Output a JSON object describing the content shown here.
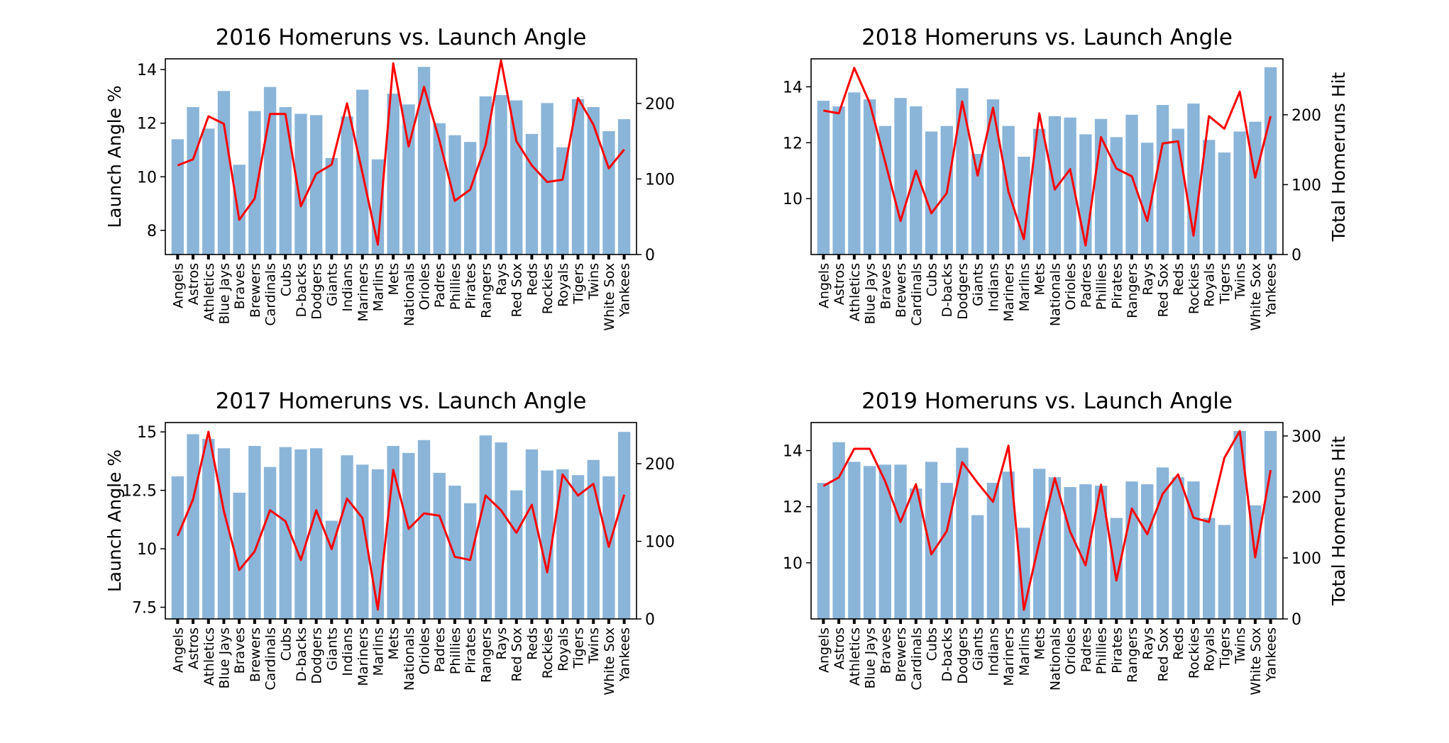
{
  "colors": {
    "bar": "#8ab5d9",
    "line": "#ff0000",
    "axis": "#000000"
  },
  "chart_data": [
    {
      "type": "bar",
      "title": "2016 Homeruns vs. Launch Angle",
      "ylabel": "Launch Angle %",
      "y2label": "",
      "categories": [
        "Angels",
        "Astros",
        "Athletics",
        "Blue Jays",
        "Braves",
        "Brewers",
        "Cardinals",
        "Cubs",
        "D-backs",
        "Dodgers",
        "Giants",
        "Indians",
        "Mariners",
        "Marlins",
        "Mets",
        "Nationals",
        "Orioles",
        "Padres",
        "Phillies",
        "Pirates",
        "Rangers",
        "Rays",
        "Red Sox",
        "Reds",
        "Rockies",
        "Royals",
        "Tigers",
        "Twins",
        "White Sox",
        "Yankees"
      ],
      "ylim": [
        7.1,
        14.4
      ],
      "y2lim": [
        0,
        259
      ],
      "yticks": [
        8,
        10,
        12,
        14
      ],
      "y2ticks": [
        0,
        100,
        200
      ],
      "series": [
        {
          "kind": "bar",
          "axis": "left",
          "values": [
            11.4,
            12.6,
            11.8,
            13.2,
            10.45,
            12.45,
            13.35,
            12.6,
            12.35,
            12.3,
            10.7,
            12.25,
            13.25,
            10.65,
            13.1,
            12.7,
            14.1,
            12.0,
            11.55,
            11.3,
            13.0,
            13.05,
            12.85,
            11.6,
            12.75,
            11.1,
            12.9,
            12.6,
            11.7,
            12.15
          ]
        },
        {
          "kind": "line",
          "axis": "right",
          "values": [
            118,
            126,
            183,
            173,
            46,
            74,
            186,
            186,
            64,
            107,
            119,
            200,
            108,
            13,
            253,
            143,
            222,
            151,
            71,
            86,
            145,
            257,
            150,
            118,
            96,
            99,
            207,
            172,
            114,
            139
          ]
        }
      ]
    },
    {
      "type": "bar",
      "title": "2018 Homeruns vs. Launch Angle",
      "ylabel": "",
      "y2label": "Total Homeruns Hit",
      "categories": [
        "Angels",
        "Astros",
        "Athletics",
        "Blue Jays",
        "Braves",
        "Brewers",
        "Cardinals",
        "Cubs",
        "D-backs",
        "Dodgers",
        "Giants",
        "Indians",
        "Mariners",
        "Marlins",
        "Mets",
        "Nationals",
        "Orioles",
        "Padres",
        "Phillies",
        "Pirates",
        "Rangers",
        "Rays",
        "Red Sox",
        "Reds",
        "Rockies",
        "Royals",
        "Tigers",
        "Twins",
        "White Sox",
        "Yankees"
      ],
      "ylim": [
        8.0,
        15.0
      ],
      "y2lim": [
        0,
        280
      ],
      "yticks": [
        10,
        12,
        14
      ],
      "y2ticks": [
        0,
        100,
        200
      ],
      "series": [
        {
          "kind": "bar",
          "axis": "left",
          "values": [
            13.5,
            13.3,
            13.8,
            13.55,
            12.6,
            13.6,
            13.3,
            12.4,
            12.6,
            13.95,
            11.6,
            13.55,
            12.6,
            11.5,
            12.5,
            12.95,
            12.9,
            12.3,
            12.85,
            12.2,
            13.0,
            12.0,
            13.35,
            12.5,
            13.4,
            12.1,
            11.65,
            12.4,
            12.75,
            14.7
          ]
        },
        {
          "kind": "line",
          "axis": "right",
          "values": [
            206,
            202,
            267,
            217,
            133,
            48,
            120,
            59,
            88,
            219,
            113,
            210,
            90,
            22,
            202,
            93,
            122,
            13,
            168,
            123,
            112,
            48,
            159,
            162,
            27,
            198,
            180,
            233,
            110,
            198
          ]
        }
      ]
    },
    {
      "type": "bar",
      "title": "2017 Homeruns vs. Launch Angle",
      "ylabel": "Launch Angle %",
      "y2label": "",
      "categories": [
        "Angels",
        "Astros",
        "Athletics",
        "Blue Jays",
        "Braves",
        "Brewers",
        "Cardinals",
        "Cubs",
        "D-backs",
        "Dodgers",
        "Giants",
        "Indians",
        "Mariners",
        "Marlins",
        "Mets",
        "Nationals",
        "Orioles",
        "Padres",
        "Phillies",
        "Pirates",
        "Rangers",
        "Rays",
        "Red Sox",
        "Reds",
        "Rockies",
        "Royals",
        "Tigers",
        "Twins",
        "White Sox",
        "Yankees"
      ],
      "ylim": [
        7.0,
        15.4
      ],
      "y2lim": [
        0,
        253
      ],
      "yticks": [
        7.5,
        10.0,
        12.5,
        15.0
      ],
      "y2ticks": [
        0,
        100,
        200
      ],
      "series": [
        {
          "kind": "bar",
          "axis": "left",
          "values": [
            13.1,
            14.9,
            14.7,
            14.3,
            12.4,
            14.4,
            13.5,
            14.35,
            14.25,
            14.3,
            11.2,
            14.0,
            13.6,
            13.4,
            14.4,
            14.1,
            14.65,
            13.25,
            12.7,
            11.95,
            14.85,
            14.55,
            12.5,
            14.25,
            13.35,
            13.4,
            13.15,
            13.8,
            13.1,
            15.0
          ]
        },
        {
          "kind": "line",
          "axis": "right",
          "values": [
            107,
            154,
            241,
            139,
            63,
            87,
            140,
            126,
            76,
            140,
            90,
            155,
            130,
            12,
            192,
            116,
            136,
            133,
            80,
            76,
            159,
            140,
            111,
            147,
            60,
            186,
            159,
            174,
            93,
            160
          ]
        }
      ]
    },
    {
      "type": "bar",
      "title": "2019 Homeruns vs. Launch Angle",
      "ylabel": "",
      "y2label": "Total Homeruns Hit",
      "categories": [
        "Angels",
        "Astros",
        "Athletics",
        "Blue Jays",
        "Braves",
        "Brewers",
        "Cardinals",
        "Cubs",
        "D-backs",
        "Dodgers",
        "Giants",
        "Indians",
        "Mariners",
        "Marlins",
        "Mets",
        "Nationals",
        "Orioles",
        "Padres",
        "Phillies",
        "Pirates",
        "Rangers",
        "Rays",
        "Red Sox",
        "Reds",
        "Rockies",
        "Royals",
        "Tigers",
        "Twins",
        "White Sox",
        "Yankees"
      ],
      "ylim": [
        8.0,
        15.0
      ],
      "y2lim": [
        0,
        322
      ],
      "yticks": [
        10,
        12,
        14
      ],
      "y2ticks": [
        0,
        100,
        200,
        300
      ],
      "series": [
        {
          "kind": "bar",
          "axis": "left",
          "values": [
            12.85,
            14.3,
            13.6,
            13.45,
            13.5,
            13.5,
            12.65,
            13.6,
            12.85,
            14.1,
            11.7,
            12.85,
            13.25,
            11.25,
            13.35,
            13.05,
            12.7,
            12.8,
            12.75,
            11.6,
            12.9,
            12.8,
            13.4,
            13.05,
            12.9,
            11.6,
            11.35,
            14.7,
            12.05,
            14.7
          ]
        },
        {
          "kind": "line",
          "axis": "right",
          "values": [
            218,
            232,
            279,
            279,
            226,
            159,
            221,
            106,
            144,
            257,
            223,
            192,
            284,
            15,
            126,
            231,
            143,
            88,
            220,
            63,
            181,
            139,
            205,
            237,
            166,
            159,
            264,
            308,
            101,
            244
          ]
        }
      ]
    }
  ]
}
